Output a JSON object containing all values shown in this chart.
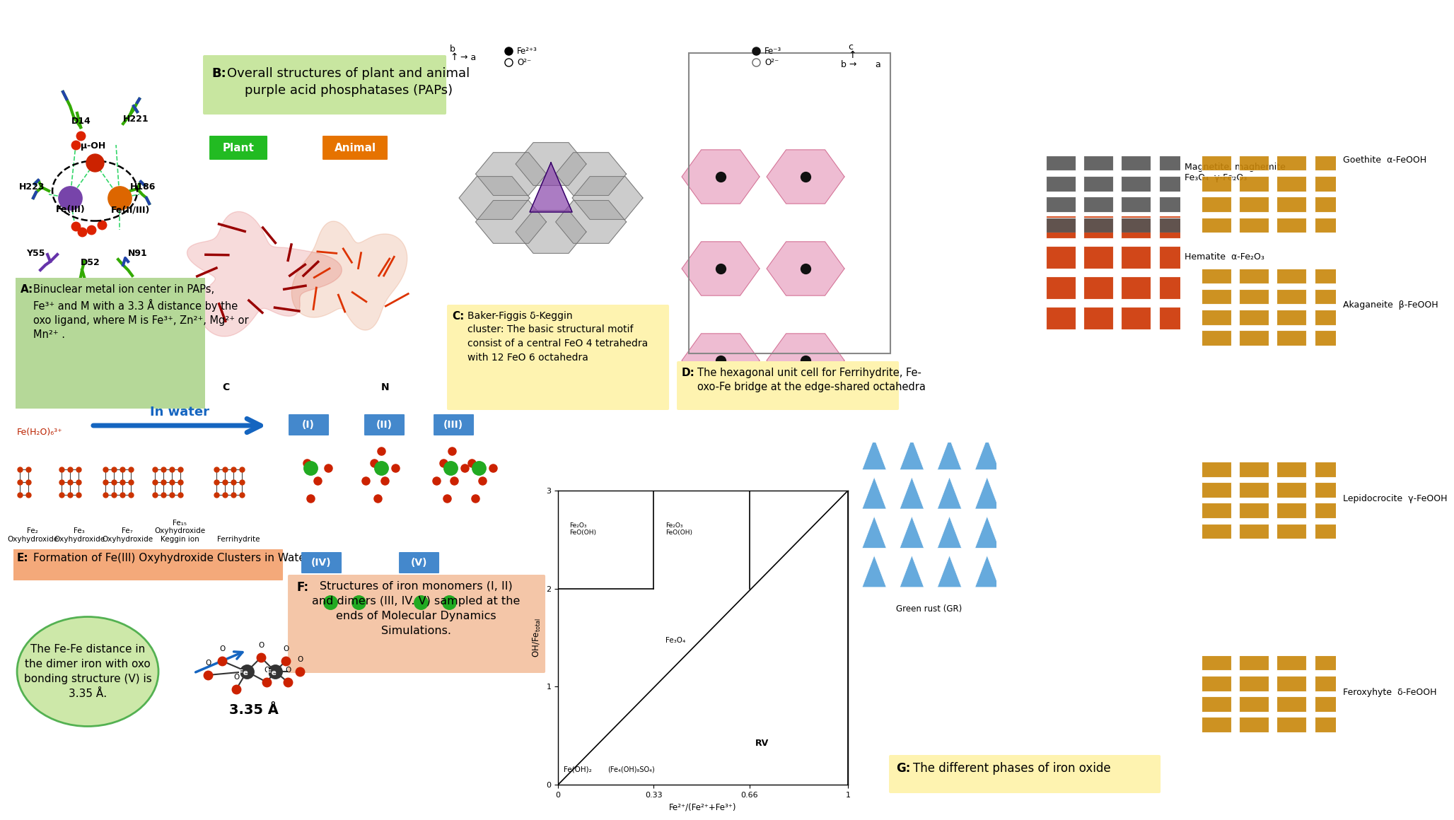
{
  "bg_color": "#ffffff",
  "panel_A_text": "A: Binuclear metal ion center in PAPs,\nFe³⁺ and M with a 3.3 Å distance by the\noxo ligand, where M is Fe³⁺, Zn²⁺, Mg²⁺ or\nMn²⁺ .",
  "panel_A_bg": "#b5d898",
  "panel_B_text": "B: Overall structures of plant and animal\npurple acid phosphatases (PAPs)",
  "panel_B_bg": "#c8e6a0",
  "panel_C_text": "C: Baker-Figgis δ-Keggin\ncluster: The basic structural motif\nconsist of a central FeO 4 tetrahedra\nwith 12 FeO 6 octahedra",
  "panel_C_bg": "#fef3b0",
  "panel_D_text": "D: The hexagonal unit cell for Ferrihydrite, Fe-\noxo-Fe bridge at the edge-shared octahedra",
  "panel_D_bg": "#fef3b0",
  "panel_E_text": "E: Formation of Fe(III) Oxyhydroxide Clusters in Water",
  "panel_E_bg": "#f4a97a",
  "panel_F_text": "F: Structures of iron monomers (I, II)\nand dimers (III, IV. V) sampled at the\nends of Molecular Dynamics\nSimulations.",
  "panel_F_bg": "#f4c6a8",
  "panel_G_text": "G: The different phases of iron oxide",
  "panel_G_bg": "#fef3b0",
  "dimer_text": "The Fe-Fe distance in\nthe dimer iron with oxo\nbonding structure (V) is\n3.35 Å.",
  "dimer_bg": "#c8e6a0",
  "plant_bg": "#22bb22",
  "animal_bg": "#e67300",
  "goethite_color": "#c8860a",
  "hematite_color": "#cc3300",
  "magnetite_color": "#666666",
  "green_rust_color": "#88ccee",
  "cluster_labels": [
    "Fe₂\nOxyhydroxide",
    "Fe₃\nOxyhydroxide",
    "Fe₇\nOxyhydroxide",
    "Fe₁₅\nOxyhydroxide\nKeggin ion",
    "Ferrihydrite"
  ]
}
